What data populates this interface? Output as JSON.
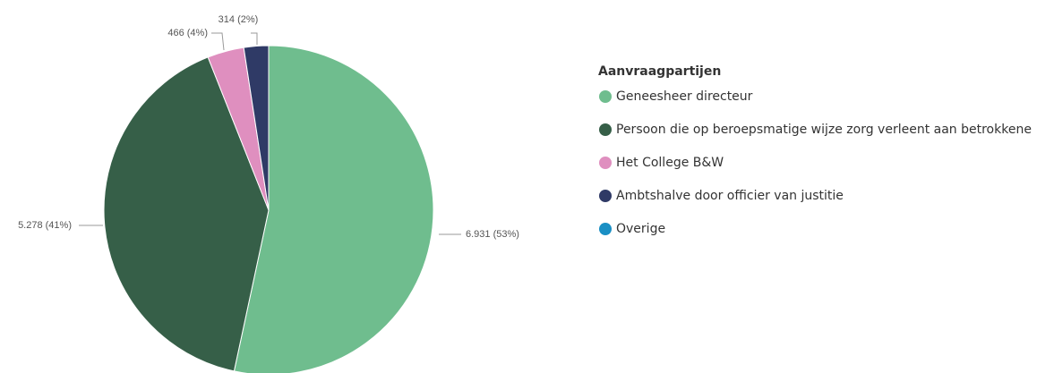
{
  "chart_data": {
    "type": "pie",
    "legend_title": "Aanvraagpartijen",
    "categories": [
      "Geneesheer directeur",
      "Persoon die op beroepsmatige wijze zorg verleent aan betrokkene",
      "Het College B&W",
      "Ambtshalve door officier van justitie",
      "Overige"
    ],
    "values": [
      6931,
      5278,
      466,
      314,
      0
    ],
    "value_labels": [
      "6.931 (53%)",
      "5.278 (41%)",
      "466 (4%)",
      "314 (2%)",
      null
    ],
    "colors": [
      "#6fbd8e",
      "#365f48",
      "#df8fbf",
      "#2f3a66",
      "#1a8fc4"
    ],
    "legend": "right"
  }
}
